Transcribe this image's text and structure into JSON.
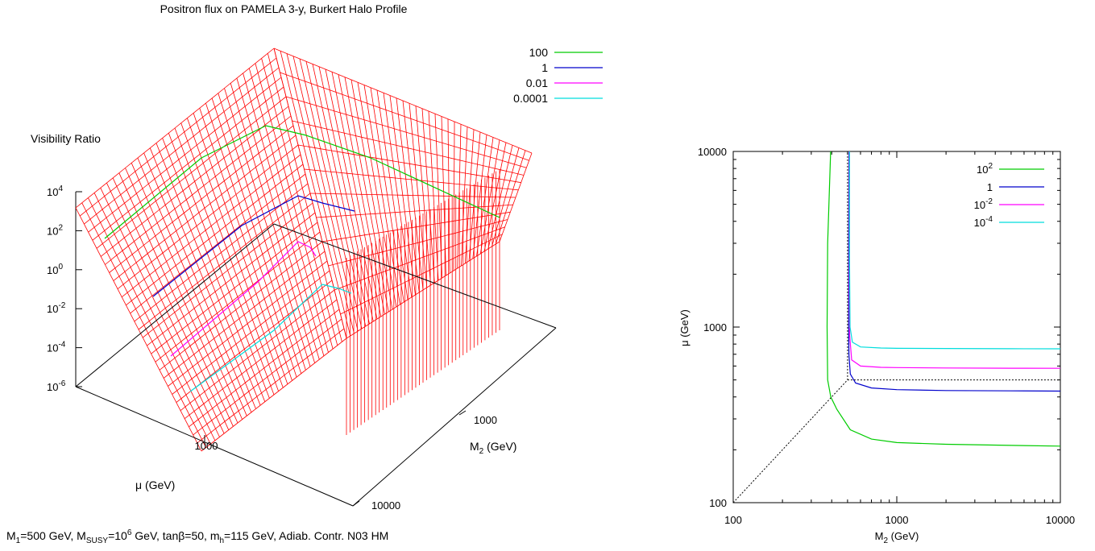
{
  "caption": {
    "m1": "M",
    "m1_sub": "1",
    "m1_val": "=500 GeV, M",
    "msusy_sub": "SUSY",
    "msusy_val": "=10",
    "msusy_sup": "6",
    "rest1": " GeV, tanβ=50, m",
    "mh_sub": "h",
    "rest2": "=115 GeV, Adiab. Contr. N03 HM"
  },
  "chart_data": [
    {
      "type": "surface3d",
      "title": "Positron flux on PAMELA 3-y, Burkert Halo Profile",
      "zlabel": "Visibility Ratio",
      "xlabel": "μ (GeV)",
      "ylabel_main": "M",
      "ylabel_sub": "2",
      "ylabel_unit": " (GeV)",
      "zscale": "log",
      "ztick_base": "10",
      "zticks": [
        {
          "exp": "4"
        },
        {
          "exp": "2"
        },
        {
          "exp": "0"
        },
        {
          "exp": "-2"
        },
        {
          "exp": "-4"
        },
        {
          "exp": "-6"
        }
      ],
      "xticks": [
        "1000"
      ],
      "yticks": [
        "1000",
        "10000"
      ],
      "legend_position": "top-right",
      "contours": [
        {
          "name": "100",
          "color": "#00cc00"
        },
        {
          "name": "1",
          "color": "#0000cc"
        },
        {
          "name": "0.01",
          "color": "#ff00ff"
        },
        {
          "name": "0.0001",
          "color": "#00dddd"
        }
      ],
      "surface_color": "#ff0000"
    },
    {
      "type": "line",
      "xlabel_main": "M",
      "xlabel_sub": "2",
      "xlabel_unit": " (GeV)",
      "ylabel": "μ (GeV)",
      "xscale": "log",
      "yscale": "log",
      "xlim": [
        100,
        10000
      ],
      "ylim": [
        100,
        10000
      ],
      "xticks": [
        "100",
        "1000",
        "10000"
      ],
      "yticks": [
        "100",
        "1000",
        "10000"
      ],
      "legend_position": "top-right",
      "legend_base": "10",
      "series": [
        {
          "name": "10^2",
          "label_base": "10",
          "label_exp": "2",
          "color": "#00cc00",
          "x": [
            394,
            378,
            375,
            378,
            395,
            430,
            520,
            700,
            1000,
            2000,
            5000,
            10000
          ],
          "y": [
            10000,
            3000,
            1000,
            500,
            400,
            340,
            260,
            230,
            220,
            215,
            212,
            210
          ]
        },
        {
          "name": "1",
          "label_base": "1",
          "label_exp": "",
          "color": "#0000cc",
          "x": [
            510,
            508,
            508,
            510,
            520,
            560,
            700,
            1000,
            2000,
            5000,
            10000
          ],
          "y": [
            10000,
            3000,
            1000,
            700,
            540,
            480,
            450,
            440,
            435,
            433,
            432
          ]
        },
        {
          "name": "10^-2",
          "label_base": "10",
          "label_exp": "-2",
          "color": "#ff00ff",
          "x": [
            512,
            512,
            515,
            530,
            600,
            800,
            1000,
            2000,
            5000,
            10000
          ],
          "y": [
            10000,
            2000,
            900,
            650,
            600,
            590,
            588,
            585,
            583,
            582
          ]
        },
        {
          "name": "10^-4",
          "label_base": "10",
          "label_exp": "-4",
          "color": "#00dddd",
          "x": [
            514,
            514,
            518,
            535,
            600,
            800,
            1000,
            2000,
            5000,
            10000
          ],
          "y": [
            10000,
            2500,
            1000,
            820,
            770,
            760,
            757,
            755,
            753,
            752
          ]
        },
        {
          "name": "",
          "color": "#000000",
          "dashed": true,
          "x": [
            100,
            500,
            500
          ],
          "y": [
            100,
            500,
            10000
          ]
        },
        {
          "name": "",
          "color": "#000000",
          "dashed": true,
          "x": [
            500,
            10000
          ],
          "y": [
            500,
            500
          ]
        }
      ]
    }
  ]
}
